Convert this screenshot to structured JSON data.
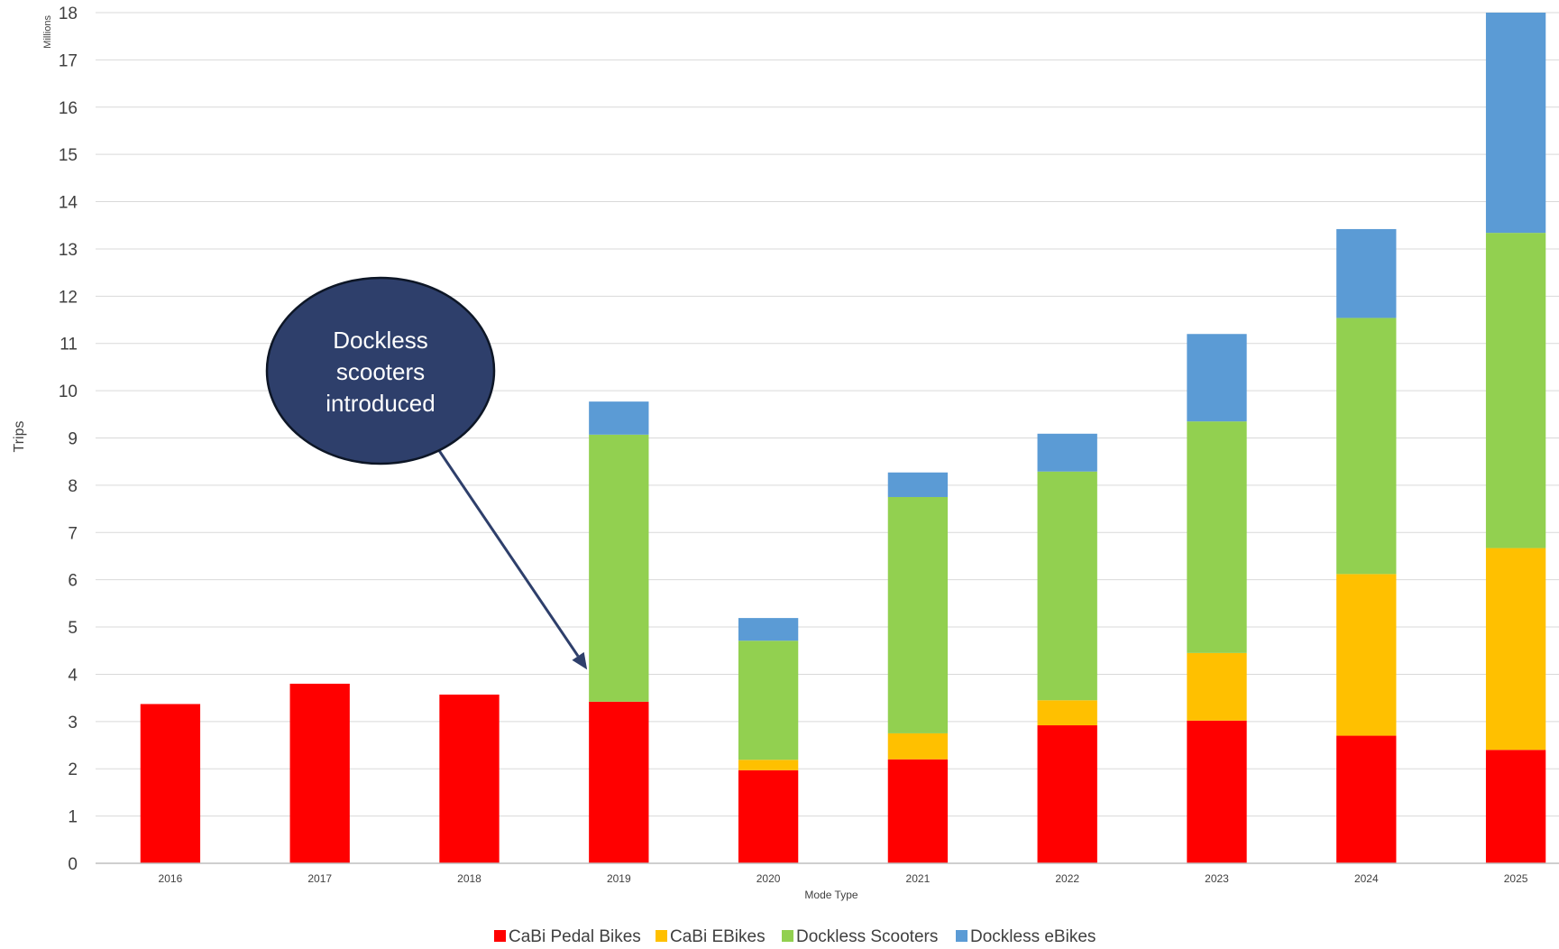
{
  "chart_data": {
    "type": "bar",
    "stacked": true,
    "title": "",
    "xlabel": "Mode Type",
    "ylabel": "Trips",
    "yunits": "Millions",
    "ylim": [
      0,
      18
    ],
    "yticks": [
      0,
      1,
      2,
      3,
      4,
      5,
      6,
      7,
      8,
      9,
      10,
      11,
      12,
      13,
      14,
      15,
      16,
      17,
      18
    ],
    "grid": true,
    "legend_position": "bottom",
    "categories": [
      "2016",
      "2017",
      "2018",
      "2019",
      "2020",
      "2021",
      "2022",
      "2023",
      "2024",
      "2025"
    ],
    "series": [
      {
        "name": "CaBi Pedal Bikes",
        "color": "#ff0000",
        "values": [
          3.37,
          3.8,
          3.57,
          3.42,
          1.97,
          2.2,
          2.92,
          3.02,
          2.7,
          2.4
        ]
      },
      {
        "name": "CaBi EBikes",
        "color": "#ffc000",
        "values": [
          0,
          0,
          0,
          0,
          0.22,
          0.55,
          0.53,
          1.43,
          3.42,
          4.27
        ]
      },
      {
        "name": "Dockless Scooters",
        "color": "#92d050",
        "values": [
          0,
          0,
          0,
          5.65,
          2.52,
          5.0,
          4.84,
          4.9,
          5.42,
          6.67
        ]
      },
      {
        "name": "Dockless eBikes",
        "color": "#5b9bd5",
        "values": [
          0,
          0,
          0,
          0.7,
          0.48,
          0.52,
          0.8,
          1.85,
          1.88,
          4.66
        ]
      }
    ],
    "annotations": [
      {
        "text_lines": [
          "Dockless",
          "scooters",
          "introduced"
        ],
        "points_to_category": "2019",
        "fill": "#2e3f6b"
      }
    ]
  }
}
